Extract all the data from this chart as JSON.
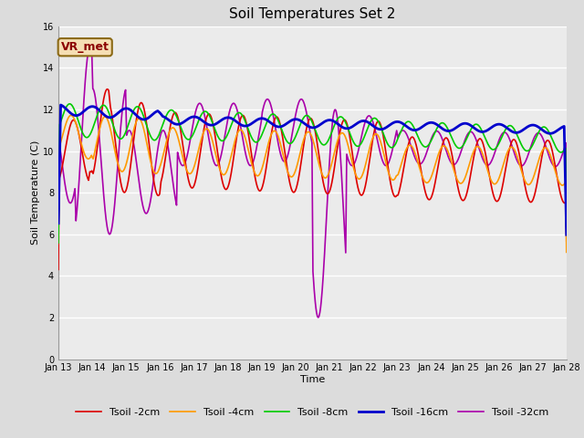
{
  "title": "Soil Temperatures Set 2",
  "xlabel": "Time",
  "ylabel": "Soil Temperature (C)",
  "ylim": [
    0,
    16
  ],
  "yticks": [
    0,
    2,
    4,
    6,
    8,
    10,
    12,
    14,
    16
  ],
  "fig_bg": "#dcdcdc",
  "plot_bg": "#ebebeb",
  "grid_color": "#ffffff",
  "annotation_text": "VR_met",
  "annotation_fg": "#8b0000",
  "annotation_bg": "#f5deb3",
  "annotation_edge": "#8b6914",
  "x_labels": [
    "Jan 13",
    "Jan 14",
    "Jan 15",
    "Jan 16",
    "Jan 17",
    "Jan 18",
    "Jan 19",
    "Jan 20",
    "Jan 21",
    "Jan 22",
    "Jan 23",
    "Jan 24",
    "Jan 25",
    "Jan 26",
    "Jan 27",
    "Jan 28"
  ],
  "colors": {
    "2cm": "#dd0000",
    "4cm": "#ff9900",
    "8cm": "#00cc00",
    "16cm": "#0000cc",
    "32cm": "#aa00aa"
  },
  "lw": 1.2,
  "lw16": 2.0,
  "title_fontsize": 11,
  "tick_fontsize": 7,
  "label_fontsize": 8,
  "legend_fontsize": 8
}
